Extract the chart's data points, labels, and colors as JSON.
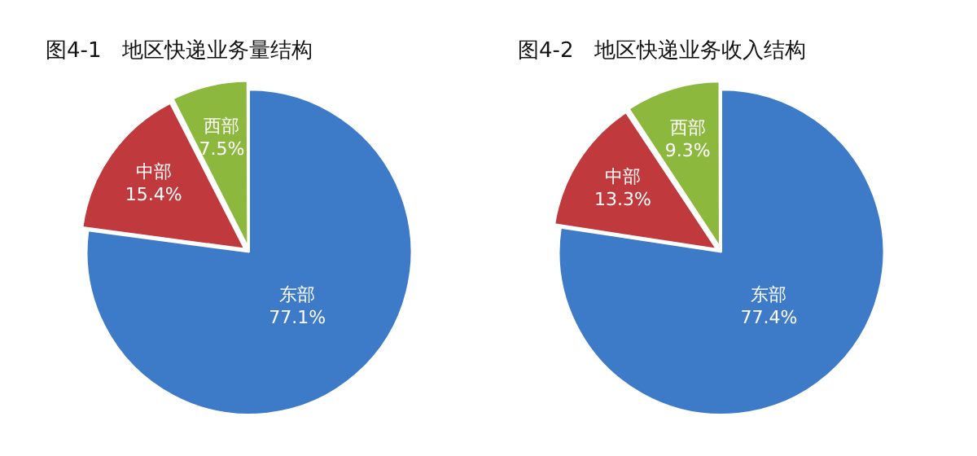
{
  "chart_data": [
    {
      "type": "pie",
      "title": "图4-1　地区快递业务量结构",
      "categories": [
        "东部",
        "中部",
        "西部"
      ],
      "values": [
        77.1,
        15.4,
        7.5
      ],
      "colors": [
        "#3d7bc9",
        "#c0393c",
        "#8db83e"
      ],
      "value_labels": [
        "77.1%",
        "15.4%",
        "7.5%"
      ],
      "legend": false
    },
    {
      "type": "pie",
      "title": "图4-2　地区快递业务收入结构",
      "categories": [
        "东部",
        "中部",
        "西部"
      ],
      "values": [
        77.4,
        13.3,
        9.3
      ],
      "colors": [
        "#3d7bc9",
        "#c0393c",
        "#8db83e"
      ],
      "value_labels": [
        "77.4%",
        "13.3%",
        "9.3%"
      ],
      "legend": false
    }
  ]
}
